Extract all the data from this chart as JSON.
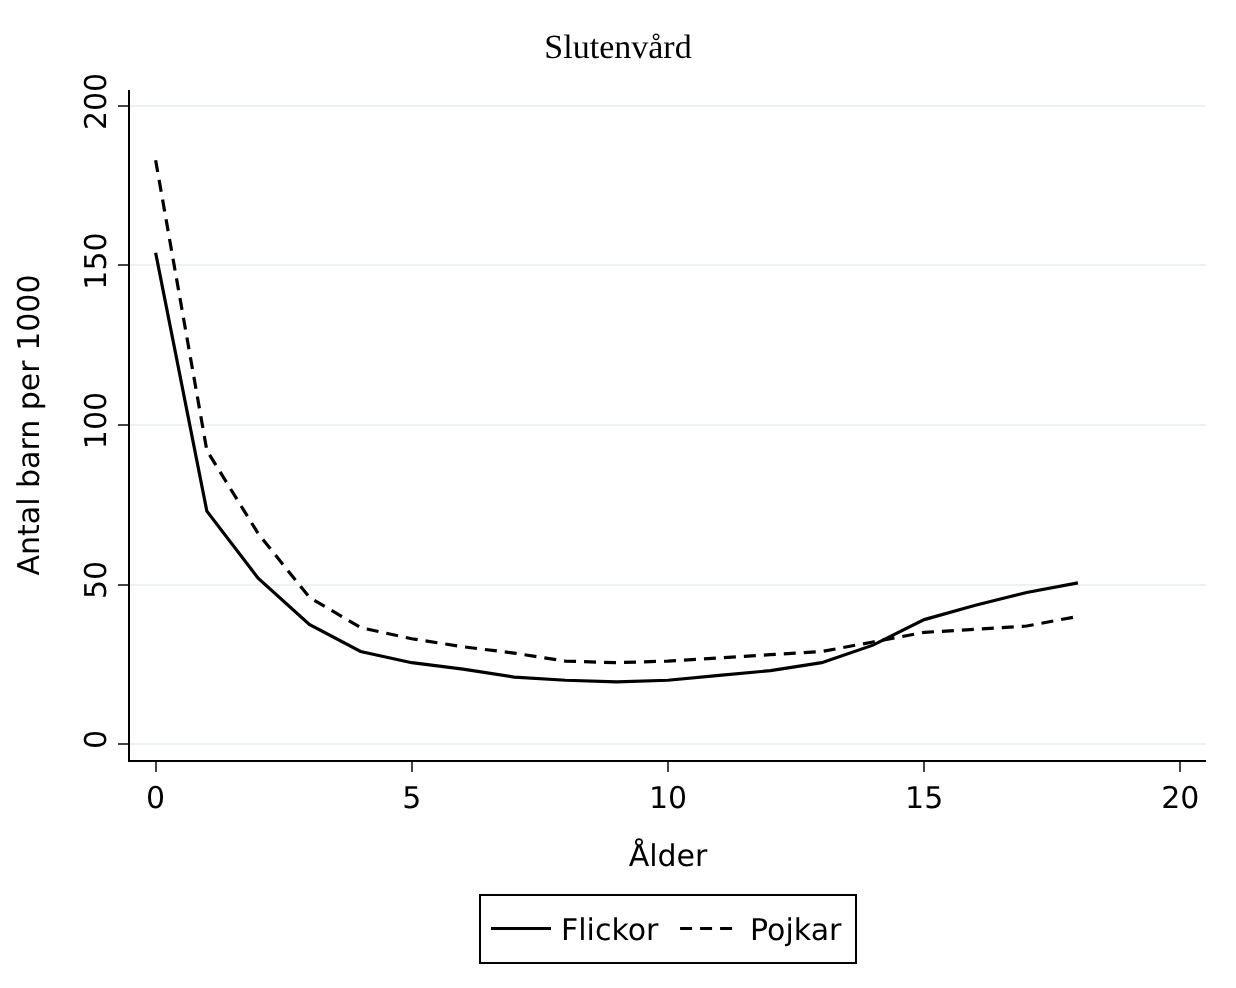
{
  "chart_data": {
    "type": "line",
    "title": "Slutenvård",
    "xlabel": "Ålder",
    "ylabel": "Antal barn per 1000",
    "x": [
      0,
      1,
      2,
      3,
      4,
      5,
      6,
      7,
      8,
      9,
      10,
      11,
      12,
      13,
      14,
      15,
      16,
      17,
      18
    ],
    "series": [
      {
        "name": "Flickor",
        "color": "#000000",
        "line_style": "solid",
        "values": [
          154,
          73,
          52,
          37.5,
          29,
          25.5,
          23.5,
          21,
          20,
          19.5,
          20,
          21.5,
          23,
          25.5,
          31,
          39,
          43.5,
          47.5,
          50.5
        ]
      },
      {
        "name": "Pojkar",
        "color": "#000000",
        "line_style": "dashed",
        "values": [
          183,
          92,
          66,
          46,
          36.5,
          33,
          30.5,
          28.5,
          26,
          25.5,
          26,
          27,
          28,
          29,
          32,
          35,
          36,
          37,
          40
        ]
      }
    ],
    "xlim": [
      -0.5,
      20.5
    ],
    "xticks": [
      0,
      5,
      10,
      15,
      20
    ],
    "ylim": [
      -5,
      205
    ],
    "yticks": [
      0,
      50,
      100,
      150,
      200
    ],
    "grid": "y",
    "legend": "bottom",
    "marker": "none"
  }
}
